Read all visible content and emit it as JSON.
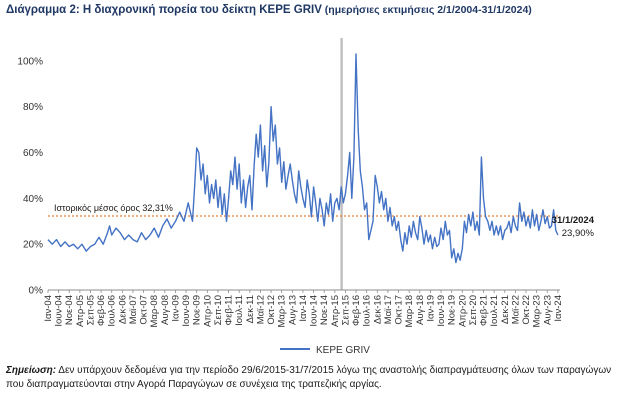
{
  "title_main": "Διάγραμμα 2: Η διαχρονική πορεία του δείκτη ΚΕΡΕ GRIV",
  "title_sub": " (ημερήσιες εκτιμήσεις 2/1/2004-31/1/2024)",
  "note_label": "Σημείωση:",
  "note_text": " Δεν υπάρχουν δεδομένα για την περίοδο 29/6/2015-31/7/2015 λόγω της αναστολής διαπραγμάτευσης όλων των παραγώγων που διαπραγματεύονται στην Αγορά Παραγώγων σε συνέχεια της τραπεζικής αργίας.",
  "colors": {
    "series": "#4472c4",
    "mean_line": "#ed7d31",
    "title": "#1f3864",
    "gap_band": "#bfbfbf"
  },
  "chart_data": {
    "type": "line",
    "title": "Διάγραμμα 2: Η διαχρονική πορεία του δείκτη ΚΕΡΕ GRIV",
    "xlabel": "",
    "ylabel": "",
    "ylim": [
      0,
      110
    ],
    "yticks": [
      0,
      20,
      40,
      60,
      80,
      100
    ],
    "ytick_labels": [
      "0%",
      "20%",
      "40%",
      "60%",
      "80%",
      "100%"
    ],
    "xlim": [
      0,
      241
    ],
    "x_tick_labels": [
      "Ιαν-04",
      "Ιουν-04",
      "Νοε-04",
      "Απρ-05",
      "Σεπ-05",
      "Φεβ-06",
      "Ιουλ-06",
      "Δεκ-06",
      "Μαϊ-07",
      "Οκτ-07",
      "Μαρ-08",
      "Αυγ-08",
      "Ιαν-09",
      "Ιουν-09",
      "Νοε-09",
      "Απρ-10",
      "Σεπ-10",
      "Φεβ-11",
      "Ιουλ-11",
      "Δεκ-11",
      "Μαϊ-12",
      "Οκτ-12",
      "Μαρ-13",
      "Αυγ-13",
      "Ιαν-14",
      "Ιουν-14",
      "Νοε-14",
      "Απρ-15",
      "Σεπ-15",
      "Φεβ-16",
      "Ιουλ-16",
      "Δεκ-16",
      "Μαϊ-17",
      "Οκτ-17",
      "Μαρ-18",
      "Αυγ-18",
      "Ιαν-19",
      "Ιουν-19",
      "Νοε-19",
      "Απρ-20",
      "Σεπ-20",
      "Φεβ-21",
      "Ιουλ-21",
      "Δεκ-21",
      "Μαϊ-22",
      "Οκτ-22",
      "Μαρ-23",
      "Αυγ-23",
      "Ιαν-24"
    ],
    "gap_period": "29/6/2015-31/7/2015",
    "legend": "bottom-center",
    "grid": false,
    "series": [
      {
        "name": "ΚΕΡΕ GRIV",
        "x_unit": "months since Jan-2004",
        "points": [
          [
            0,
            22
          ],
          [
            2,
            20
          ],
          [
            4,
            22
          ],
          [
            6,
            19
          ],
          [
            8,
            21
          ],
          [
            10,
            19
          ],
          [
            12,
            20
          ],
          [
            14,
            18
          ],
          [
            16,
            20
          ],
          [
            18,
            17
          ],
          [
            20,
            19
          ],
          [
            22,
            20
          ],
          [
            24,
            23
          ],
          [
            26,
            20
          ],
          [
            28,
            25
          ],
          [
            29,
            28
          ],
          [
            30,
            24
          ],
          [
            32,
            27
          ],
          [
            34,
            25
          ],
          [
            36,
            22
          ],
          [
            38,
            24
          ],
          [
            40,
            22
          ],
          [
            42,
            21
          ],
          [
            44,
            25
          ],
          [
            46,
            22
          ],
          [
            48,
            24
          ],
          [
            50,
            27
          ],
          [
            52,
            23
          ],
          [
            54,
            28
          ],
          [
            56,
            31
          ],
          [
            58,
            27
          ],
          [
            60,
            30
          ],
          [
            62,
            34
          ],
          [
            64,
            30
          ],
          [
            66,
            38
          ],
          [
            68,
            30
          ],
          [
            69,
            45
          ],
          [
            70,
            62
          ],
          [
            71,
            60
          ],
          [
            72,
            48
          ],
          [
            73,
            55
          ],
          [
            74,
            42
          ],
          [
            75,
            50
          ],
          [
            76,
            38
          ],
          [
            77,
            46
          ],
          [
            78,
            40
          ],
          [
            79,
            48
          ],
          [
            80,
            36
          ],
          [
            81,
            45
          ],
          [
            82,
            33
          ],
          [
            83,
            42
          ],
          [
            84,
            30
          ],
          [
            85,
            40
          ],
          [
            86,
            52
          ],
          [
            87,
            46
          ],
          [
            88,
            58
          ],
          [
            89,
            44
          ],
          [
            90,
            55
          ],
          [
            91,
            38
          ],
          [
            92,
            48
          ],
          [
            93,
            36
          ],
          [
            94,
            45
          ],
          [
            95,
            50
          ],
          [
            96,
            35
          ],
          [
            97,
            54
          ],
          [
            98,
            68
          ],
          [
            99,
            58
          ],
          [
            100,
            72
          ],
          [
            101,
            52
          ],
          [
            102,
            63
          ],
          [
            103,
            45
          ],
          [
            104,
            56
          ],
          [
            105,
            80
          ],
          [
            106,
            65
          ],
          [
            107,
            72
          ],
          [
            108,
            55
          ],
          [
            109,
            62
          ],
          [
            110,
            47
          ],
          [
            111,
            56
          ],
          [
            112,
            44
          ],
          [
            113,
            50
          ],
          [
            114,
            55
          ],
          [
            115,
            48
          ],
          [
            116,
            42
          ],
          [
            117,
            38
          ],
          [
            118,
            52
          ],
          [
            119,
            45
          ],
          [
            120,
            40
          ],
          [
            121,
            36
          ],
          [
            122,
            48
          ],
          [
            123,
            42
          ],
          [
            124,
            32
          ],
          [
            125,
            45
          ],
          [
            126,
            38
          ],
          [
            127,
            30
          ],
          [
            128,
            40
          ],
          [
            129,
            35
          ],
          [
            130,
            28
          ],
          [
            131,
            38
          ],
          [
            132,
            33
          ],
          [
            133,
            42
          ],
          [
            134,
            30
          ],
          [
            135,
            38
          ],
          [
            136,
            40
          ],
          [
            137,
            35
          ],
          [
            138,
            45
          ],
          [
            139,
            38
          ],
          [
            140,
            42
          ],
          [
            141,
            50
          ],
          [
            142,
            60
          ],
          [
            143,
            40
          ],
          [
            144,
            58
          ],
          [
            145,
            103
          ],
          [
            146,
            70
          ],
          [
            147,
            52
          ],
          [
            148,
            45
          ],
          [
            149,
            35
          ],
          [
            150,
            38
          ],
          [
            151,
            22
          ],
          [
            152,
            26
          ],
          [
            153,
            30
          ],
          [
            154,
            50
          ],
          [
            155,
            45
          ],
          [
            156,
            38
          ],
          [
            157,
            43
          ],
          [
            158,
            35
          ],
          [
            159,
            40
          ],
          [
            160,
            30
          ],
          [
            161,
            36
          ],
          [
            162,
            28
          ],
          [
            163,
            32
          ],
          [
            164,
            26
          ],
          [
            165,
            30
          ],
          [
            166,
            22
          ],
          [
            167,
            17
          ],
          [
            168,
            25
          ],
          [
            169,
            20
          ],
          [
            170,
            28
          ],
          [
            171,
            23
          ],
          [
            172,
            30
          ],
          [
            173,
            25
          ],
          [
            174,
            22
          ],
          [
            175,
            32
          ],
          [
            176,
            27
          ],
          [
            177,
            20
          ],
          [
            178,
            26
          ],
          [
            179,
            21
          ],
          [
            180,
            24
          ],
          [
            181,
            18
          ],
          [
            182,
            23
          ],
          [
            183,
            19
          ],
          [
            184,
            20
          ],
          [
            185,
            27
          ],
          [
            186,
            22
          ],
          [
            187,
            30
          ],
          [
            188,
            24
          ],
          [
            189,
            26
          ],
          [
            190,
            14
          ],
          [
            191,
            18
          ],
          [
            192,
            12
          ],
          [
            193,
            16
          ],
          [
            194,
            13
          ],
          [
            195,
            18
          ],
          [
            196,
            30
          ],
          [
            197,
            25
          ],
          [
            198,
            33
          ],
          [
            199,
            28
          ],
          [
            200,
            34
          ],
          [
            201,
            26
          ],
          [
            202,
            30
          ],
          [
            203,
            24
          ],
          [
            204,
            58
          ],
          [
            205,
            40
          ],
          [
            206,
            32
          ],
          [
            207,
            30
          ],
          [
            208,
            26
          ],
          [
            209,
            30
          ],
          [
            210,
            24
          ],
          [
            211,
            28
          ],
          [
            212,
            24
          ],
          [
            213,
            28
          ],
          [
            214,
            22
          ],
          [
            215,
            26
          ],
          [
            216,
            27
          ],
          [
            217,
            30
          ],
          [
            218,
            25
          ],
          [
            219,
            32
          ],
          [
            220,
            28
          ],
          [
            221,
            26
          ],
          [
            222,
            38
          ],
          [
            223,
            30
          ],
          [
            224,
            34
          ],
          [
            225,
            28
          ],
          [
            226,
            32
          ],
          [
            227,
            27
          ],
          [
            228,
            35
          ],
          [
            229,
            28
          ],
          [
            230,
            33
          ],
          [
            231,
            26
          ],
          [
            232,
            30
          ],
          [
            233,
            35
          ],
          [
            234,
            29
          ],
          [
            235,
            32
          ],
          [
            236,
            27
          ],
          [
            237,
            28
          ],
          [
            238,
            35
          ],
          [
            239,
            26
          ],
          [
            240,
            24
          ]
        ]
      }
    ],
    "mean_line": {
      "value": 32.31,
      "label": "Ιστορικός μέσος όρος 32,31%"
    },
    "annotation": {
      "date": "31/1/2024",
      "value_label": "23,90%",
      "value": 23.9
    }
  }
}
